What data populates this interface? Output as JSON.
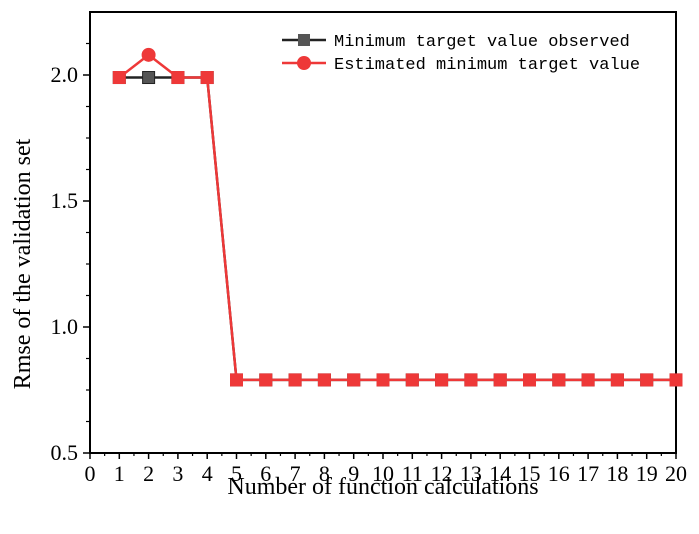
{
  "chart_data": {
    "type": "line",
    "title": "",
    "xlabel": "Number of function calculations",
    "ylabel": "Rmse of the validation set",
    "xlim": [
      0,
      20
    ],
    "ylim": [
      0.5,
      2.25
    ],
    "x_ticks": [
      "0",
      "1",
      "2",
      "3",
      "4",
      "5",
      "6",
      "7",
      "8",
      "9",
      "10",
      "11",
      "12",
      "13",
      "14",
      "15",
      "16",
      "17",
      "18",
      "19",
      "20"
    ],
    "y_ticks": [
      "0.5",
      "1.0",
      "1.5",
      "2.0"
    ],
    "legend_position": "top-right",
    "grid": false,
    "x": [
      1,
      2,
      3,
      4,
      5,
      6,
      7,
      8,
      9,
      10,
      11,
      12,
      13,
      14,
      15,
      16,
      17,
      18,
      19,
      20
    ],
    "series": [
      {
        "name": "Minimum target value observed",
        "color": "#222222",
        "marker": "square",
        "values": [
          1.99,
          1.99,
          1.99,
          1.99,
          0.79,
          0.79,
          0.79,
          0.79,
          0.79,
          0.79,
          0.79,
          0.79,
          0.79,
          0.79,
          0.79,
          0.79,
          0.79,
          0.79,
          0.79,
          0.79
        ]
      },
      {
        "name": "Estimated minimum target value",
        "color": "#ee3838",
        "marker": "circle",
        "values": [
          1.99,
          2.08,
          1.99,
          1.99,
          0.79,
          0.79,
          0.79,
          0.79,
          0.79,
          0.79,
          0.79,
          0.79,
          0.79,
          0.79,
          0.79,
          0.79,
          0.79,
          0.79,
          0.79,
          0.79
        ]
      }
    ],
    "overlay_marker_color": "#ee3838"
  }
}
